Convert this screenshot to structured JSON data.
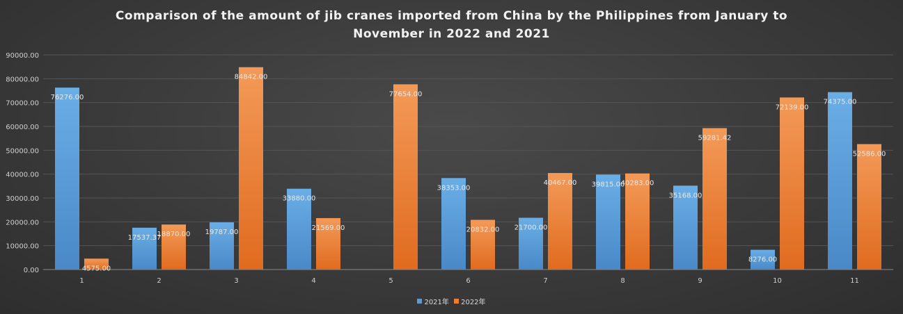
{
  "chart_data": {
    "type": "bar",
    "title": "Comparison of the amount of jib cranes imported from China by the Philippines from January to\nNovember in 2022 and 2021",
    "categories": [
      "1",
      "2",
      "3",
      "4",
      "5",
      "6",
      "7",
      "8",
      "9",
      "10",
      "11"
    ],
    "series": [
      {
        "name": "2021年",
        "color": "#5b9bd5",
        "values": [
          76276.0,
          17537.37,
          19787.0,
          33880.0,
          null,
          38353.0,
          21700.0,
          39815.0,
          35168.0,
          8276.0,
          74375.0
        ],
        "labels": [
          "76276.00",
          "17537.37",
          "19787.00",
          "33880.00",
          "",
          "38353.00",
          "21700.00",
          "39815.00",
          "35168.00",
          "8276.00",
          "74375.00"
        ]
      },
      {
        "name": "2022年",
        "color": "#ed7d31",
        "values": [
          4575.0,
          18870.0,
          84842.0,
          21569.0,
          77654.0,
          20832.0,
          40467.0,
          40283.0,
          59281.42,
          72139.0,
          52586.0
        ],
        "labels": [
          "4575.00",
          "18870.00",
          "84842.00",
          "21569.00",
          "77654.00",
          "20832.00",
          "40467.00",
          "40283.00",
          "59281.42",
          "72139.00",
          "52586.00"
        ]
      }
    ],
    "yticks": [
      "0.00",
      "10000.00",
      "20000.00",
      "30000.00",
      "40000.00",
      "50000.00",
      "60000.00",
      "70000.00",
      "80000.00",
      "90000.00"
    ],
    "ylim": [
      0,
      90000
    ],
    "xlabel": "",
    "ylabel": "",
    "grid": true,
    "legend_position": "bottom"
  }
}
